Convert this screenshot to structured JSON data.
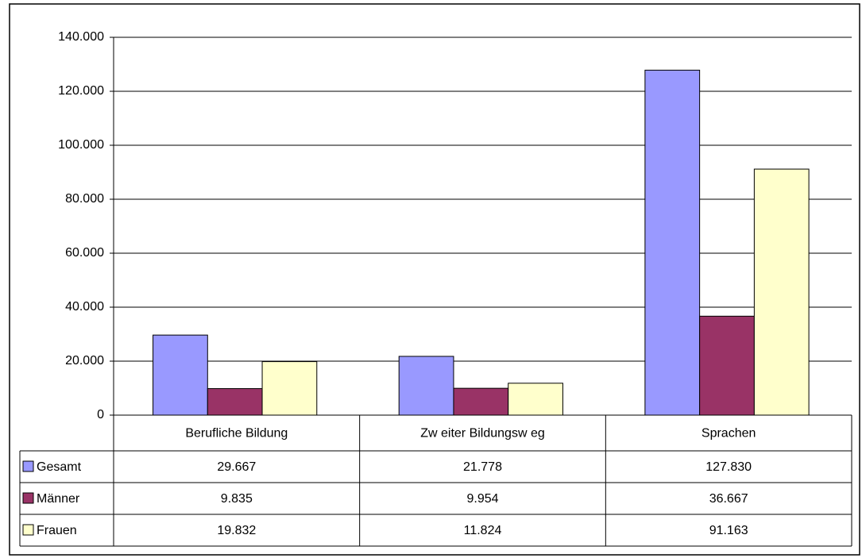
{
  "chart_data": {
    "type": "bar",
    "categories": [
      "Berufliche Bildung",
      "Zw eiter Bildungsw eg",
      "Sprachen"
    ],
    "series": [
      {
        "name": "Gesamt",
        "color": "#9999ff",
        "values": [
          29667,
          21778,
          127830
        ],
        "value_labels": [
          "29.667",
          "21.778",
          "127.830"
        ]
      },
      {
        "name": "Männer",
        "color": "#993366",
        "values": [
          9835,
          9954,
          36667
        ],
        "value_labels": [
          "9.835",
          "9.954",
          "36.667"
        ]
      },
      {
        "name": "Frauen",
        "color": "#ffffcc",
        "values": [
          19832,
          11824,
          91163
        ],
        "value_labels": [
          "19.832",
          "11.824",
          "91.163"
        ]
      }
    ],
    "ylim": [
      0,
      140000
    ],
    "yticks": [
      0,
      {
        "value": 20000,
        "label": "20.000"
      },
      {
        "value": 40000,
        "label": "40.000"
      },
      {
        "value": 60000,
        "label": "60.000"
      },
      {
        "value": 80000,
        "label": "80.000"
      },
      {
        "value": 100000,
        "label": "100.000"
      },
      {
        "value": 120000,
        "label": "120.000"
      },
      {
        "value": 140000,
        "label": "140.000"
      }
    ],
    "grid": true
  }
}
